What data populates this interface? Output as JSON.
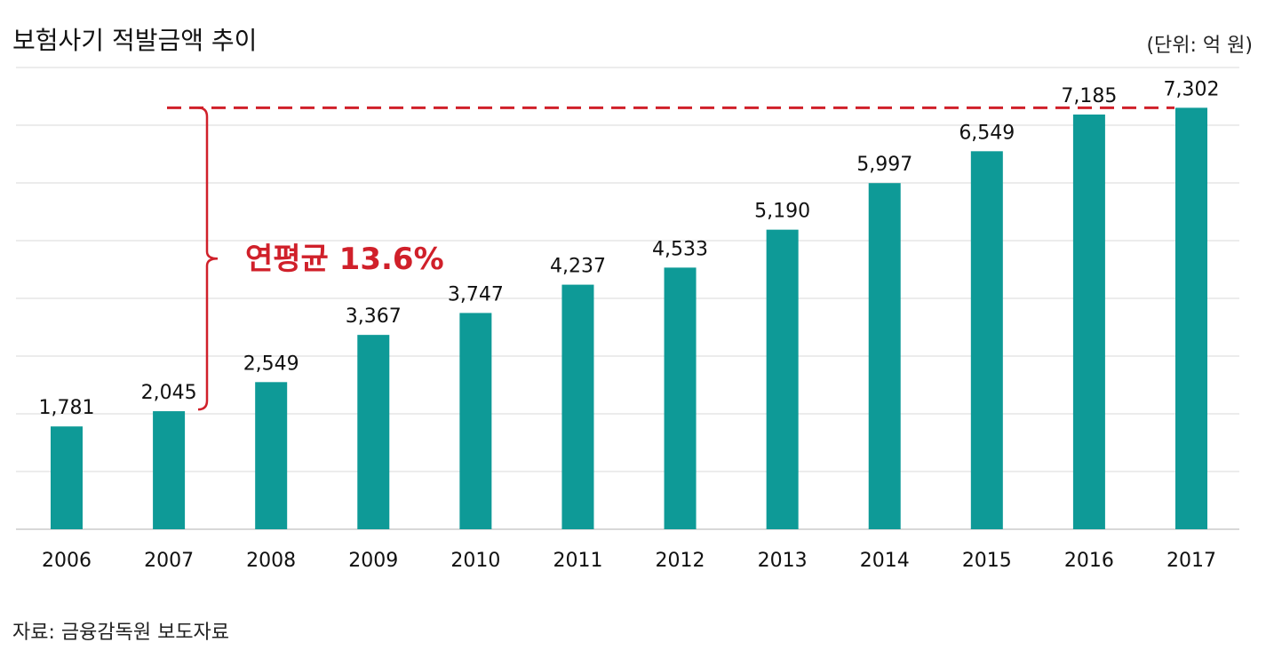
{
  "chart_data": {
    "type": "bar",
    "title": "보험사기 적발금액 추이",
    "unit_label": "(단위: 억 원)",
    "source": "자료: 금융감독원 보도자료",
    "categories": [
      "2006",
      "2007",
      "2008",
      "2009",
      "2010",
      "2011",
      "2012",
      "2013",
      "2014",
      "2015",
      "2016",
      "2017"
    ],
    "values": [
      1781,
      2045,
      2549,
      3367,
      3747,
      4237,
      4533,
      5190,
      5997,
      6549,
      7185,
      7302
    ],
    "value_labels": [
      "1,781",
      "2,045",
      "2,549",
      "3,367",
      "3,747",
      "4,237",
      "4,533",
      "5,190",
      "5,997",
      "6,549",
      "7,185",
      "7,302"
    ],
    "xlabel": "",
    "ylabel": "",
    "ylim": [
      0,
      8000
    ],
    "grid": true,
    "annotation": {
      "text": "연평균 13.6%",
      "from_category": "2007",
      "to_value": 7302
    },
    "colors": {
      "bar": "#0e9a97",
      "annotation": "#d0202a",
      "grid": "#e6e6e6"
    }
  }
}
